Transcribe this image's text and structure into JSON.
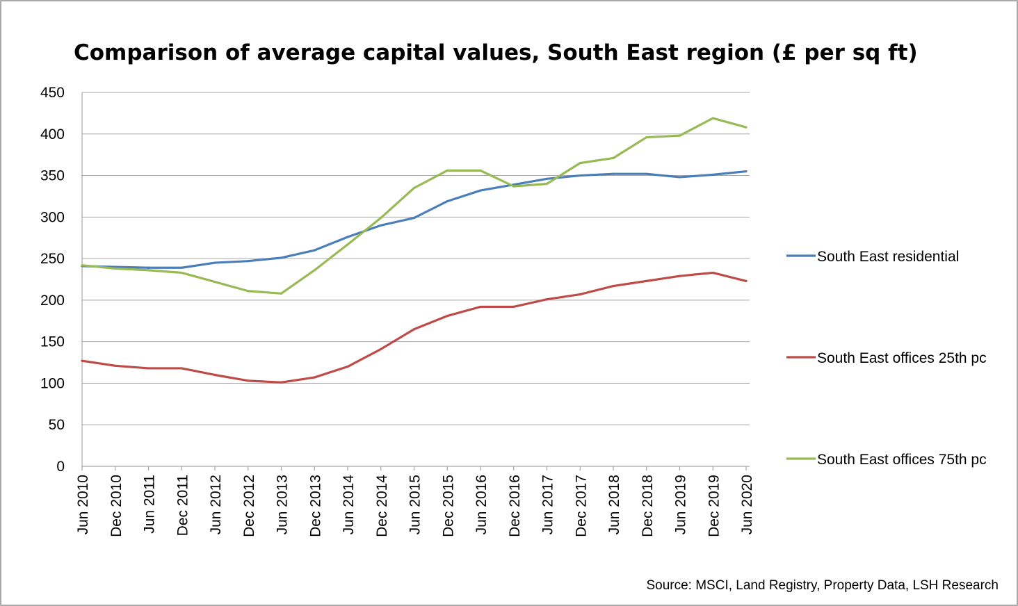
{
  "chart_data": {
    "type": "line",
    "title": "Comparison of average capital values, South East region (£ per sq ft)",
    "xlabel": "",
    "ylabel": "",
    "ylim": [
      0,
      450
    ],
    "yticks": [
      "0",
      "50",
      "100",
      "150",
      "200",
      "250",
      "300",
      "350",
      "400",
      "450"
    ],
    "grid": true,
    "legend_position": "right",
    "categories": [
      "Jun 2010",
      "Dec 2010",
      "Jun 2011",
      "Dec 2011",
      "Jun 2012",
      "Dec 2012",
      "Jun 2013",
      "Dec 2013",
      "Jun 2014",
      "Dec 2014",
      "Jun 2015",
      "Dec 2015",
      "Jun 2016",
      "Dec 2016",
      "Jun 2017",
      "Dec 2017",
      "Jun 2018",
      "Dec 2018",
      "Jun 2019",
      "Dec 2019",
      "Jun 2020"
    ],
    "series": [
      {
        "name": "South East residential",
        "color": "#4a7ebb",
        "values": [
          241,
          240,
          239,
          239,
          245,
          247,
          251,
          260,
          276,
          290,
          299,
          319,
          332,
          339,
          346,
          350,
          352,
          352,
          348,
          351,
          355
        ]
      },
      {
        "name": "South East offices 25th pc",
        "color": "#be4b48",
        "values": [
          127,
          121,
          118,
          118,
          110,
          103,
          101,
          107,
          120,
          141,
          165,
          181,
          192,
          192,
          201,
          207,
          217,
          223,
          229,
          233,
          223
        ]
      },
      {
        "name": "South East offices 75th pc",
        "color": "#98b954",
        "values": [
          242,
          238,
          236,
          233,
          222,
          211,
          208,
          236,
          267,
          299,
          335,
          356,
          356,
          337,
          340,
          365,
          371,
          396,
          398,
          419,
          408
        ]
      }
    ],
    "source": "Source: MSCI, Land Registry, Property Data, LSH Research"
  }
}
